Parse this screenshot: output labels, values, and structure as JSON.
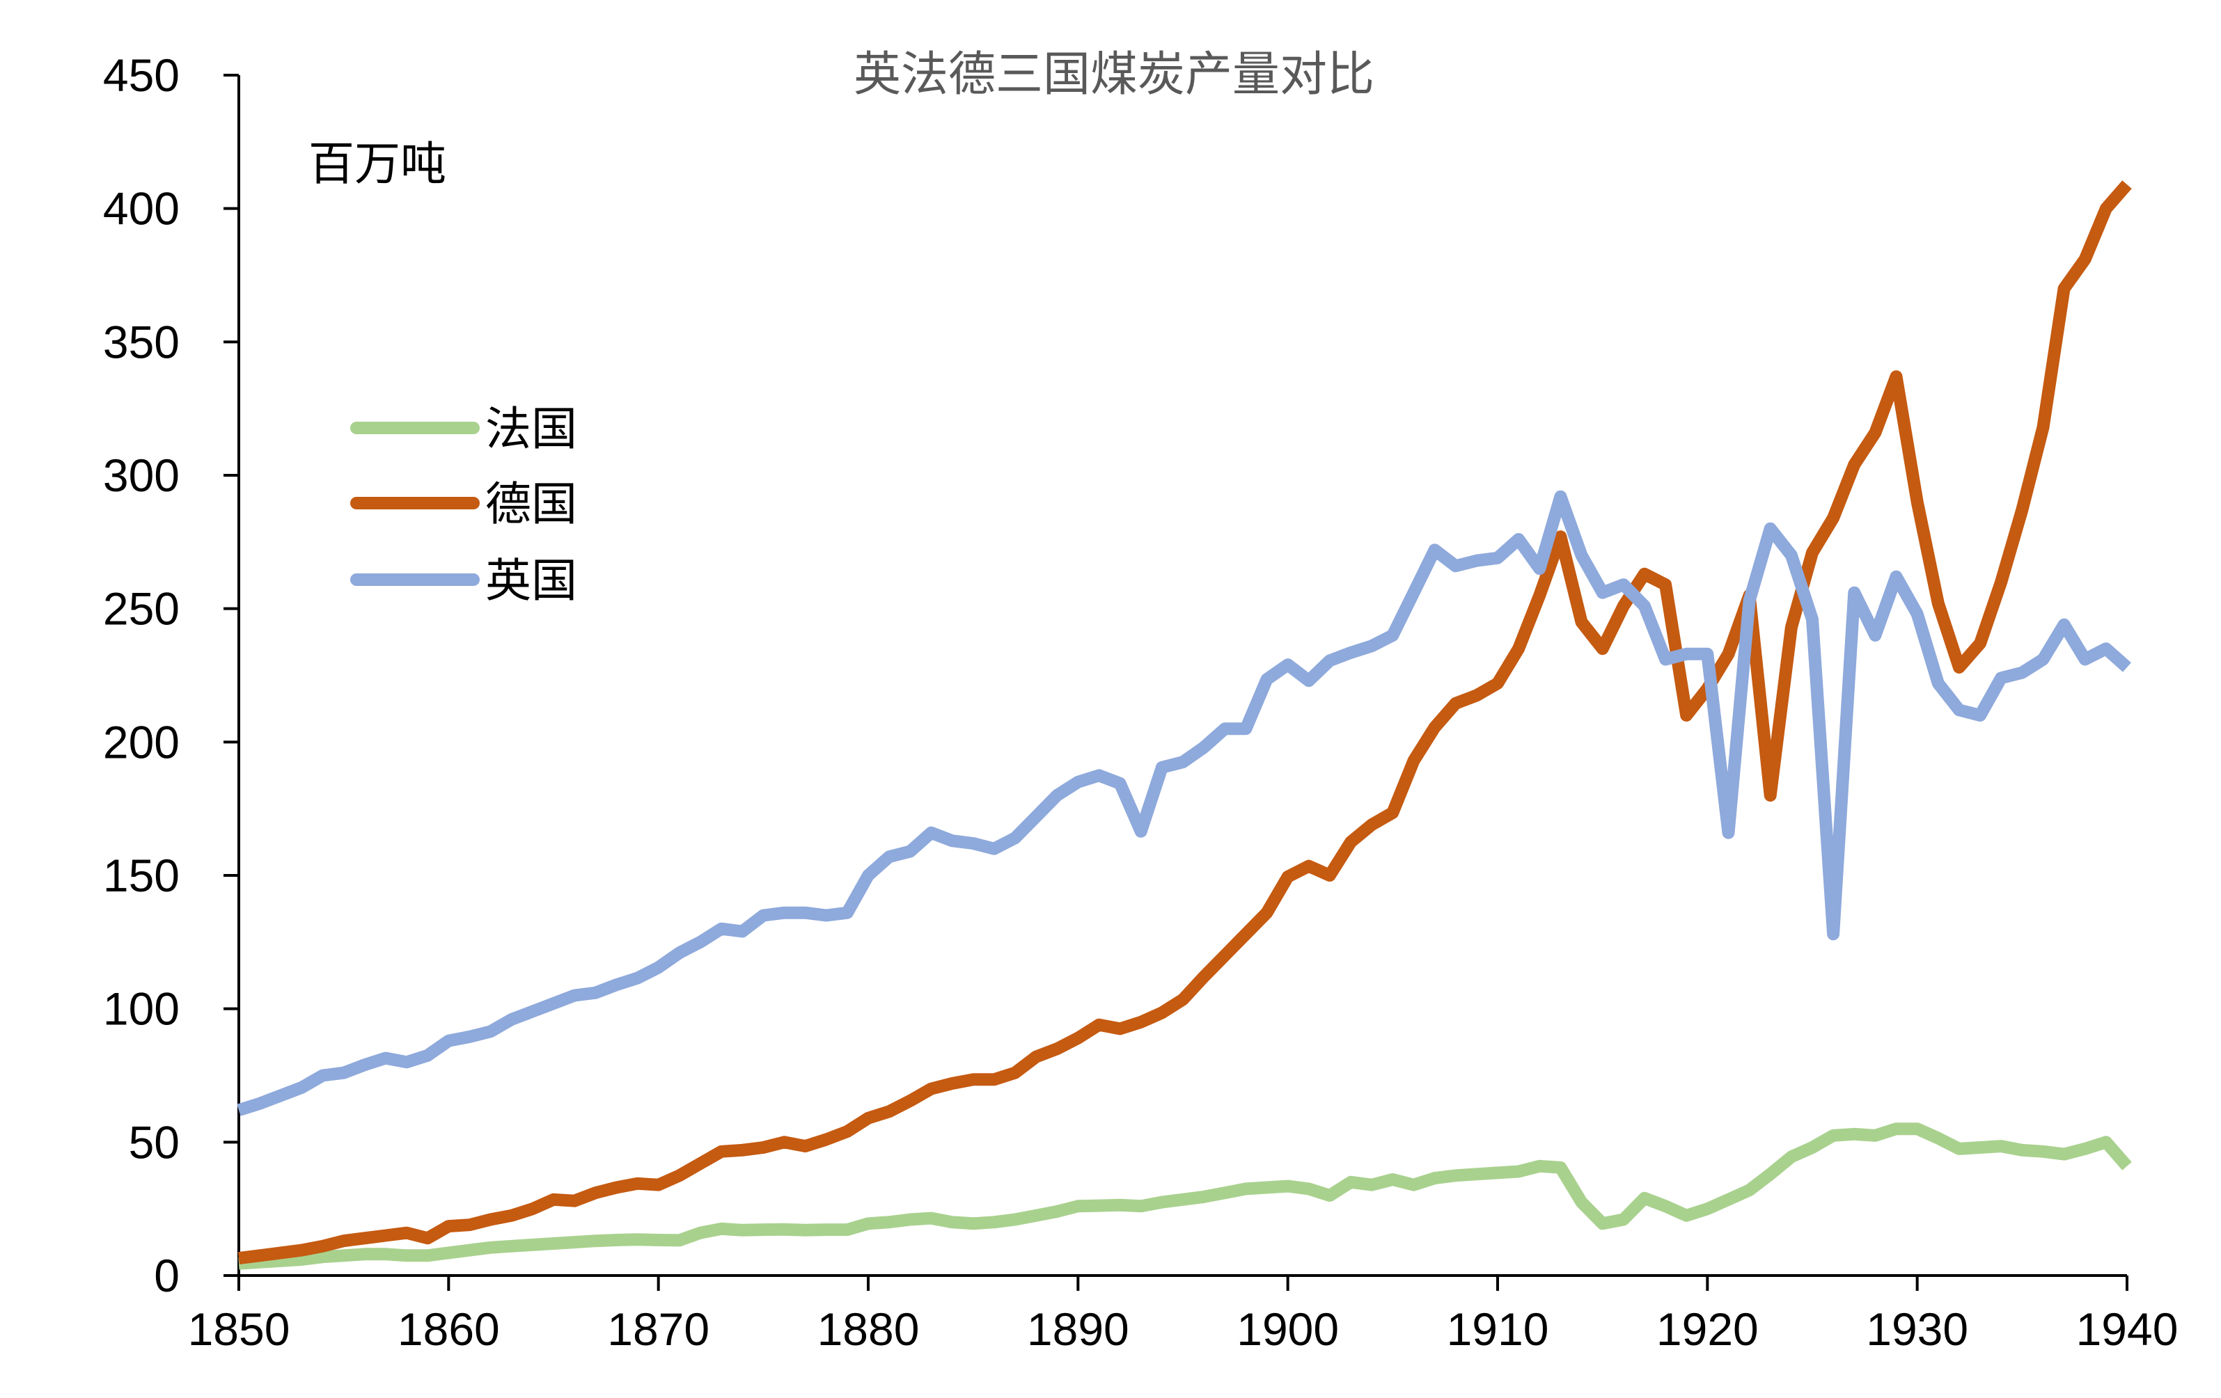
{
  "chart_data": {
    "type": "line",
    "title": "英法德三国煤炭产量对比",
    "unit_label": "百万吨",
    "xlim": [
      1850,
      1940
    ],
    "ylim": [
      0,
      450
    ],
    "x_ticks": [
      1850,
      1860,
      1870,
      1880,
      1890,
      1900,
      1910,
      1920,
      1930,
      1940
    ],
    "y_ticks": [
      0,
      50,
      100,
      150,
      200,
      250,
      300,
      350,
      400,
      450
    ],
    "legend_position": "left",
    "x": [
      1850,
      1851,
      1852,
      1853,
      1854,
      1855,
      1856,
      1857,
      1858,
      1859,
      1860,
      1861,
      1862,
      1863,
      1864,
      1865,
      1866,
      1867,
      1868,
      1869,
      1870,
      1871,
      1872,
      1873,
      1874,
      1875,
      1876,
      1877,
      1878,
      1879,
      1880,
      1881,
      1882,
      1883,
      1884,
      1885,
      1886,
      1887,
      1888,
      1889,
      1890,
      1891,
      1892,
      1893,
      1894,
      1895,
      1896,
      1897,
      1898,
      1899,
      1900,
      1901,
      1902,
      1903,
      1904,
      1905,
      1906,
      1907,
      1908,
      1909,
      1910,
      1911,
      1912,
      1913,
      1914,
      1915,
      1916,
      1917,
      1918,
      1919,
      1920,
      1921,
      1922,
      1923,
      1924,
      1925,
      1926,
      1927,
      1928,
      1929,
      1930,
      1931,
      1932,
      1933,
      1934,
      1935,
      1936,
      1937,
      1938,
      1939,
      1940
    ],
    "series": [
      {
        "name": "法国",
        "color": "#A9D18E",
        "values": [
          4.5,
          5,
          5.5,
          6,
          7,
          7.5,
          8,
          8,
          7.5,
          7.5,
          8.5,
          9.5,
          10.5,
          11,
          11.5,
          12,
          12.5,
          13,
          13.3,
          13.5,
          13.3,
          13.2,
          16,
          17.5,
          17,
          17.2,
          17.3,
          17,
          17.2,
          17.2,
          19.5,
          20,
          21,
          21.5,
          20,
          19.5,
          20,
          21,
          22.5,
          24,
          26,
          26.2,
          26.4,
          26,
          27.5,
          28.5,
          29.5,
          31,
          32.5,
          33,
          33.5,
          32.5,
          30,
          35,
          34,
          36,
          34,
          36.5,
          37.5,
          38,
          38.5,
          39,
          41,
          40.5,
          27.5,
          19.5,
          21,
          29,
          26,
          22.5,
          25,
          28.5,
          32,
          38,
          44.5,
          48,
          52.5,
          53,
          52.5,
          55,
          55,
          51.5,
          47.5,
          48,
          48.5,
          47,
          46.5,
          45.5,
          47.5,
          50,
          41
        ]
      },
      {
        "name": "德国",
        "color": "#C55A11",
        "values": [
          6.5,
          7.5,
          8.5,
          9.5,
          11,
          13,
          14,
          15,
          16,
          14,
          18.5,
          19,
          21,
          22.5,
          25,
          28.5,
          28,
          31,
          33,
          34.5,
          34,
          37.5,
          42,
          46.5,
          47,
          48,
          50,
          48.5,
          51,
          54,
          59,
          61.5,
          65.5,
          70,
          72,
          73.5,
          73.5,
          76,
          82,
          85,
          89,
          94,
          92.5,
          95,
          98.5,
          103.5,
          112,
          120,
          128,
          136,
          149.5,
          153.5,
          150,
          162.5,
          169,
          173.5,
          193,
          205.5,
          214.5,
          217.5,
          222,
          235,
          255,
          277,
          245,
          235,
          251,
          263,
          259,
          210,
          220,
          233,
          255,
          180,
          243,
          271,
          284,
          304,
          316,
          337,
          290,
          252,
          228,
          237,
          260,
          287,
          318,
          370,
          381,
          400,
          409
        ]
      },
      {
        "name": "英国",
        "color": "#8EA9DB",
        "values": [
          62,
          64.5,
          67.5,
          70.5,
          75,
          76,
          79,
          81.5,
          80,
          82.5,
          88,
          89.5,
          91.5,
          96,
          99,
          102,
          105,
          106,
          109,
          111.5,
          115.5,
          121,
          125,
          130,
          129,
          135,
          136,
          136,
          135,
          136,
          150,
          157,
          159,
          166,
          163,
          162,
          160,
          164,
          172,
          180,
          185,
          187.5,
          184.5,
          166.5,
          190.5,
          192.5,
          198,
          205,
          205,
          223.5,
          229,
          223,
          230.5,
          233.5,
          236,
          240,
          256,
          272,
          266,
          268,
          269,
          276,
          265,
          292,
          270,
          256,
          259,
          251,
          231,
          233,
          233,
          166,
          253,
          280,
          270,
          246,
          128,
          256,
          240,
          262,
          248,
          222,
          212,
          210,
          224,
          226,
          231,
          244,
          231,
          235,
          228
        ]
      }
    ]
  }
}
